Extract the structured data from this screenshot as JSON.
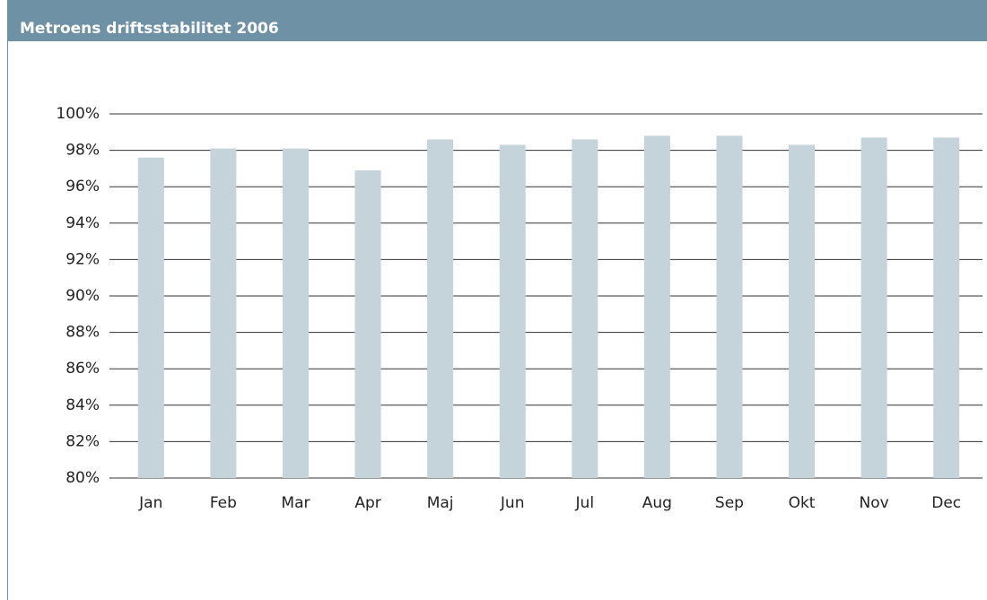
{
  "chart_data": {
    "type": "bar",
    "title": "Metroens driftsstabilitet 2006",
    "categories": [
      "Jan",
      "Feb",
      "Mar",
      "Apr",
      "Maj",
      "Jun",
      "Jul",
      "Aug",
      "Sep",
      "Okt",
      "Nov",
      "Dec"
    ],
    "values": [
      97.6,
      98.1,
      98.1,
      96.9,
      98.6,
      98.3,
      98.6,
      98.8,
      98.8,
      98.3,
      98.7,
      98.7
    ],
    "color": "#c5d3da",
    "ylim": [
      80,
      100
    ],
    "yticks": [
      {
        "value": 80,
        "label": "80%"
      },
      {
        "value": 82,
        "label": "82%"
      },
      {
        "value": 84,
        "label": "84%"
      },
      {
        "value": 86,
        "label": "86%"
      },
      {
        "value": 88,
        "label": "88%"
      },
      {
        "value": 90,
        "label": "90%"
      },
      {
        "value": 92,
        "label": "92%"
      },
      {
        "value": 94,
        "label": "94%"
      },
      {
        "value": 96,
        "label": "96%"
      },
      {
        "value": 98,
        "label": "98%"
      },
      {
        "value": 100,
        "label": "100%"
      }
    ],
    "grid": true
  }
}
